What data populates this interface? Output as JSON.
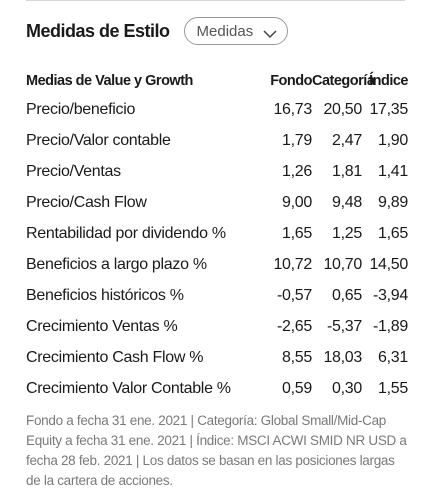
{
  "header": {
    "title": "Medidas de Estilo",
    "dropdown_value": "Medidas"
  },
  "table": {
    "columns": [
      "Medias de Value y Growth",
      "Fondo",
      "Categoría",
      "Índice"
    ],
    "rows": [
      {
        "label": "Precio/beneficio",
        "fondo": "16,73",
        "categoria": "20,50",
        "indice": "17,35"
      },
      {
        "label": "Precio/Valor contable",
        "fondo": "1,79",
        "categoria": "2,47",
        "indice": "1,90"
      },
      {
        "label": "Precio/Ventas",
        "fondo": "1,26",
        "categoria": "1,81",
        "indice": "1,41"
      },
      {
        "label": "Precio/Cash Flow",
        "fondo": "9,00",
        "categoria": "9,48",
        "indice": "9,89"
      },
      {
        "label": "Rentabilidad por dividendo %",
        "fondo": "1,65",
        "categoria": "1,25",
        "indice": "1,65"
      },
      {
        "label": "Beneficios a largo plazo %",
        "fondo": "10,72",
        "categoria": "10,70",
        "indice": "14,50"
      },
      {
        "label": "Beneficios históricos %",
        "fondo": "-0,57",
        "categoria": "0,65",
        "indice": "-3,94"
      },
      {
        "label": "Crecimiento Ventas %",
        "fondo": "-2,65",
        "categoria": "-5,37",
        "indice": "-1,89"
      },
      {
        "label": "Crecimiento Cash Flow %",
        "fondo": "8,55",
        "categoria": "18,03",
        "indice": "6,31"
      },
      {
        "label": "Crecimiento Valor Contable %",
        "fondo": "0,59",
        "categoria": "0,30",
        "indice": "1,55"
      }
    ]
  },
  "footnote": "Fondo a fecha 31 ene. 2021 | Categoría: Global Small/Mid-Cap Equity a fecha 31 ene. 2021 | Índice: MSCI ACWI SMID NR USD a fecha 28 feb. 2021 | Los datos se basan en las posiciones largas de la cartera de acciones.",
  "icons": {
    "dropdown": "chevron-down-icon"
  }
}
